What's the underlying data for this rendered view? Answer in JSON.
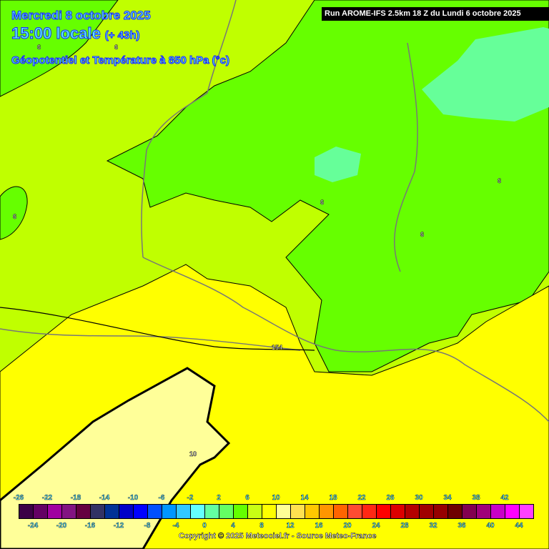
{
  "header": {
    "date": "Mercredi 8 octobre 2025",
    "time": "15:00 locale",
    "lead": "(+ 43h)",
    "parameter": "Géopotentiel et Température à 850 hPa (°c)"
  },
  "run_info": "Run AROME-IFS 2.5km 18 Z du Lundi 6 octobre 2025",
  "map": {
    "field_colors": {
      "green": "#66ff00",
      "yellow_green": "#c0ff00",
      "mint": "#66ff99",
      "yellow": "#ffff00",
      "pale_yellow": "#ffff99"
    },
    "contour_labels": [
      "6",
      "6",
      "6",
      "6",
      "6",
      "6",
      "154",
      "10"
    ]
  },
  "legend": {
    "top_labels": [
      "-26",
      "-22",
      "-18",
      "-14",
      "-10",
      "-6",
      "-2",
      "2",
      "6",
      "10",
      "14",
      "18",
      "22",
      "26",
      "30",
      "34",
      "38",
      "42"
    ],
    "bottom_labels": [
      "-24",
      "-20",
      "-16",
      "-12",
      "-8",
      "-4",
      "0",
      "4",
      "8",
      "12",
      "16",
      "20",
      "24",
      "28",
      "32",
      "36",
      "40",
      "44"
    ],
    "colors": [
      "#3c0046",
      "#640064",
      "#a000a0",
      "#821482",
      "#640040",
      "#323264",
      "#003296",
      "#0000c8",
      "#0000ff",
      "#0050ff",
      "#0096ff",
      "#32c8ff",
      "#64ffff",
      "#64ffa0",
      "#64ff64",
      "#64ff00",
      "#c8ff14",
      "#ffff00",
      "#ffff96",
      "#ffe150",
      "#ffc800",
      "#ff9600",
      "#ff6400",
      "#ff4b32",
      "#ff2814",
      "#ff0000",
      "#dc0000",
      "#b40000",
      "#a00000",
      "#960000",
      "#6e0000",
      "#820050",
      "#a0007a",
      "#c800c8",
      "#ff00ff",
      "#ff40ff",
      "#ff88ff"
    ]
  },
  "copyright": "Copyright © 2025 Meteociel.fr - Source Meteo-France"
}
